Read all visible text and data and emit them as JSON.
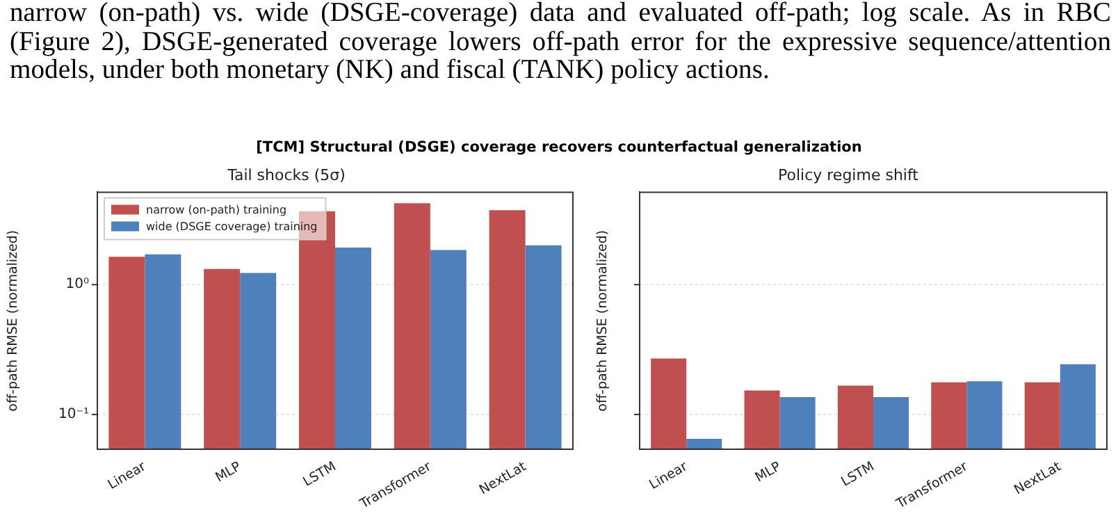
{
  "chart_data": [
    {
      "type": "bar",
      "title": "Tail shocks (5σ)",
      "ylabel": "off-path RMSE (normalized)",
      "annotations": [
        "narrow (on-path) vs. wide (DSGE-coverage) data and evaluated off-path; log scale.  As in RBC (Figure 2), DSGE-generated coverage lowers off-path error for the expressive sequence/attention models, under both monetary (NK) and fiscal (TANK) policy actions.",
        "[TCM] Structural (DSGE) coverage recovers counterfactual generalization"
      ],
      "categories": [
        "Linear",
        "MLP",
        "LSTM",
        "Transformer",
        "NextLat"
      ],
      "series": [
        {
          "name": "narrow (on-path) training",
          "color": "#c0504f",
          "values": [
            1.64,
            1.32,
            3.68,
            4.24,
            3.74
          ]
        },
        {
          "name": "wide (DSGE coverage) training",
          "color": "#4e80bc",
          "values": [
            1.71,
            1.23,
            1.93,
            1.85,
            2.01
          ]
        }
      ],
      "log": "y",
      "ylim": [
        0.054,
        5.15
      ],
      "yticks": [
        {
          "value": 0.1,
          "label": "10⁻¹"
        },
        {
          "value": 1,
          "label": "10⁰"
        }
      ],
      "grid": "y",
      "legend": "top left"
    },
    {
      "type": "bar",
      "title": "Policy regime shift",
      "ylabel": "off-path RMSE (normalized)",
      "categories": [
        "Linear",
        "MLP",
        "LSTM",
        "Transformer",
        "NextLat"
      ],
      "series": [
        {
          "color": "#c0504f",
          "values": [
            0.27,
            0.153,
            0.167,
            0.177,
            0.177
          ]
        },
        {
          "color": "#4e80bc",
          "values": [
            0.065,
            0.136,
            0.136,
            0.18,
            0.244
          ]
        }
      ],
      "log": "y",
      "ylim": [
        0.054,
        5.15
      ],
      "yticks": [
        0.1,
        1
      ],
      "grid": "y",
      "tick_labels": "x"
    }
  ]
}
